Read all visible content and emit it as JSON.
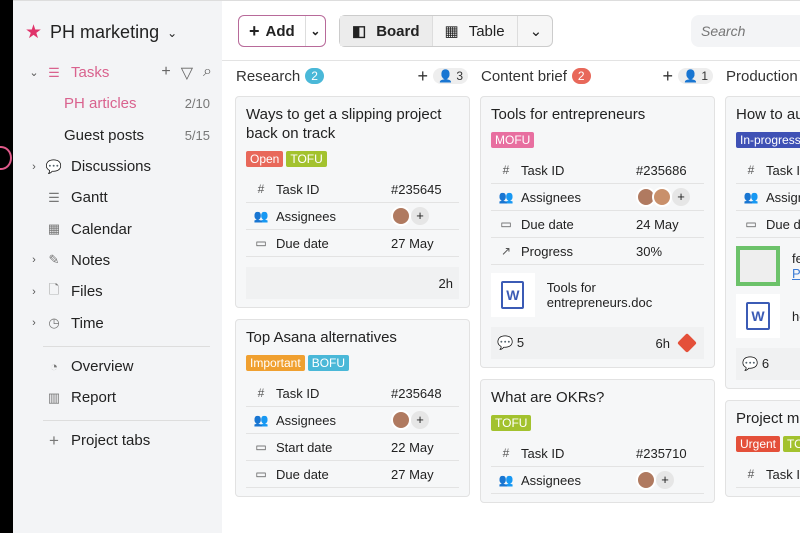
{
  "workspace": {
    "name": "PH marketing"
  },
  "sidebar": {
    "tasks": "Tasks",
    "items": [
      {
        "label": "PH articles",
        "count": "2/10"
      },
      {
        "label": "Guest posts",
        "count": "5/15"
      },
      {
        "label": "Discussions"
      },
      {
        "label": "Gantt"
      },
      {
        "label": "Calendar"
      },
      {
        "label": "Notes"
      },
      {
        "label": "Files"
      },
      {
        "label": "Time"
      },
      {
        "label": "Overview"
      },
      {
        "label": "Report"
      },
      {
        "label": "Project tabs"
      }
    ]
  },
  "toolbar": {
    "add": "Add",
    "board": "Board",
    "table": "Table",
    "search_placeholder": "Search"
  },
  "colors": {
    "accent": "#d9628e",
    "open": "#e8685a",
    "tofu": "#a3c22e",
    "mofu": "#e86fa0",
    "bofu": "#4ab8d8",
    "important": "#f0a030",
    "inprogress": "#3f51b5",
    "urgent": "#e4503a"
  },
  "columns": [
    {
      "title": "Research",
      "count": "2",
      "badge_color": "#4ab8d8",
      "members": "3",
      "cards": [
        {
          "title": "Ways to get a slipping project back on track",
          "tags": [
            {
              "t": "Open",
              "c": "#e8685a"
            },
            {
              "t": "TOFU",
              "c": "#a3c22e"
            }
          ],
          "fields": [
            {
              "icon": "#",
              "k": "Task ID",
              "v": "#235645"
            },
            {
              "icon": "assignees",
              "k": "Assignees",
              "avatars": 1
            },
            {
              "icon": "calendar",
              "k": "Due date",
              "v": "27 May"
            }
          ],
          "footer": {
            "time": "2h"
          }
        },
        {
          "title": "Top Asana alternatives",
          "tags": [
            {
              "t": "Important",
              "c": "#f0a030"
            },
            {
              "t": "BOFU",
              "c": "#4ab8d8"
            }
          ],
          "fields": [
            {
              "icon": "#",
              "k": "Task ID",
              "v": "#235648"
            },
            {
              "icon": "assignees",
              "k": "Assignees",
              "avatars": 1
            },
            {
              "icon": "calendar",
              "k": "Start date",
              "v": "22 May"
            },
            {
              "icon": "calendar",
              "k": "Due date",
              "v": "27 May"
            }
          ]
        }
      ]
    },
    {
      "title": "Content brief",
      "count": "2",
      "badge_color": "#e8685a",
      "members": "1",
      "cards": [
        {
          "title": "Tools for entrepreneurs",
          "tags": [
            {
              "t": "MOFU",
              "c": "#e86fa0"
            }
          ],
          "fields": [
            {
              "icon": "#",
              "k": "Task ID",
              "v": "#235686"
            },
            {
              "icon": "assignees",
              "k": "Assignees",
              "avatars": 2
            },
            {
              "icon": "calendar",
              "k": "Due date",
              "v": "24 May"
            },
            {
              "icon": "progress",
              "k": "Progress",
              "v": "30%"
            }
          ],
          "attachments": [
            {
              "type": "doc",
              "name": "Tools for entrepreneurs.doc"
            }
          ],
          "footer": {
            "comments": "5",
            "time": "6h",
            "priority": true
          }
        },
        {
          "title": "What are OKRs?",
          "tags": [
            {
              "t": "TOFU",
              "c": "#a3c22e"
            }
          ],
          "fields": [
            {
              "icon": "#",
              "k": "Task ID",
              "v": "#235710"
            },
            {
              "icon": "assignees",
              "k": "Assignees",
              "avatars": 1
            }
          ]
        }
      ]
    },
    {
      "title": "Production",
      "cards": [
        {
          "title": "How to au",
          "tags": [
            {
              "t": "In-progress",
              "c": "#3f51b5"
            }
          ],
          "fields": [
            {
              "icon": "#",
              "k": "Task ID"
            },
            {
              "icon": "assignees",
              "k": "Assignees"
            },
            {
              "icon": "calendar",
              "k": "Due date"
            }
          ],
          "attachments": [
            {
              "type": "image",
              "name": "fe",
              "link": "Pr"
            },
            {
              "type": "doc",
              "name": "ho"
            }
          ],
          "footer": {
            "comments": "6"
          }
        },
        {
          "title": "Project ma",
          "tags": [
            {
              "t": "Urgent",
              "c": "#e4503a"
            },
            {
              "t": "TO",
              "c": "#a3c22e"
            }
          ],
          "fields": [
            {
              "icon": "#",
              "k": "Task ID"
            }
          ]
        }
      ]
    }
  ]
}
